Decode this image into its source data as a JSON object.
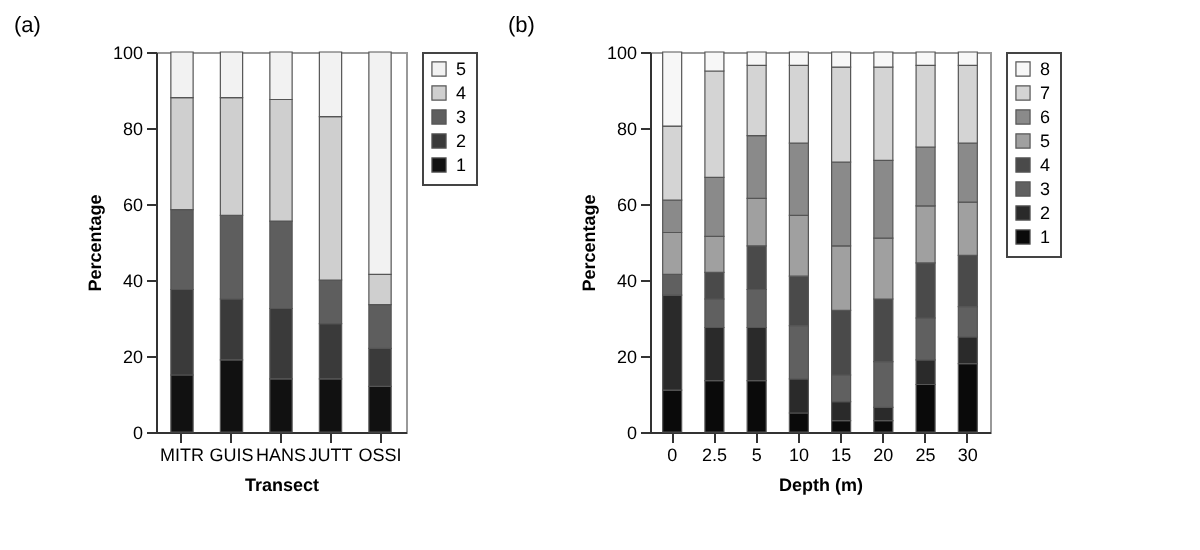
{
  "chart_data": [
    {
      "type": "bar",
      "title": "(a)",
      "xlabel": "Transect",
      "ylabel": "Percentage",
      "categories": [
        "MITR",
        "GUIS",
        "HANS",
        "JUTT",
        "OSSI"
      ],
      "stacked": true,
      "ylim": [
        0,
        100
      ],
      "yticks": [
        0,
        20,
        40,
        60,
        80,
        100
      ],
      "grid": false,
      "legend": "right",
      "series": [
        {
          "name": "1",
          "color": "#111111",
          "values": [
            15,
            19,
            14,
            14,
            12
          ]
        },
        {
          "name": "2",
          "color": "#3a3a3a",
          "values": [
            22.5,
            16,
            18.5,
            14.5,
            10
          ]
        },
        {
          "name": "3",
          "color": "#5e5e5e",
          "values": [
            21,
            22,
            23,
            11.5,
            11.5
          ]
        },
        {
          "name": "4",
          "color": "#cfcfcf",
          "values": [
            29.5,
            31,
            32,
            43,
            8
          ]
        },
        {
          "name": "5",
          "color": "#f2f2f2",
          "values": [
            12,
            12,
            12.5,
            17,
            58.5
          ]
        }
      ]
    },
    {
      "type": "bar",
      "title": "(b)",
      "xlabel": "Depth (m)",
      "ylabel": "Percentage",
      "categories": [
        "0",
        "2.5",
        "5",
        "10",
        "15",
        "20",
        "25",
        "30"
      ],
      "stacked": true,
      "ylim": [
        0,
        100
      ],
      "yticks": [
        0,
        20,
        40,
        60,
        80,
        100
      ],
      "grid": false,
      "legend": "right",
      "series": [
        {
          "name": "1",
          "color": "#0a0a0a",
          "values": [
            11,
            13.5,
            13.5,
            5,
            3,
            3,
            12.5,
            18
          ]
        },
        {
          "name": "2",
          "color": "#2a2a2a",
          "values": [
            25,
            14,
            14,
            9,
            5,
            3.5,
            6.5,
            7
          ]
        },
        {
          "name": "3",
          "color": "#606060",
          "values": [
            5.5,
            7.5,
            10,
            14,
            7,
            12,
            11,
            8
          ]
        },
        {
          "name": "4",
          "color": "#4a4a4a",
          "values": [
            0,
            7,
            11.5,
            13,
            17,
            16.5,
            14.5,
            13.5
          ]
        },
        {
          "name": "5",
          "color": "#a0a0a0",
          "values": [
            11,
            9.5,
            12.5,
            16,
            17,
            16,
            15,
            14
          ]
        },
        {
          "name": "6",
          "color": "#8a8a8a",
          "values": [
            8.5,
            15.5,
            16.5,
            19,
            22,
            20.5,
            15.5,
            15.5
          ]
        },
        {
          "name": "7",
          "color": "#d4d4d4",
          "values": [
            19.5,
            28,
            18.5,
            20.5,
            25,
            24.5,
            21.5,
            20.5
          ]
        },
        {
          "name": "8",
          "color": "#f7f7f7",
          "values": [
            19.5,
            5,
            3.5,
            3.5,
            4,
            4,
            3.5,
            3.5
          ]
        }
      ]
    }
  ]
}
